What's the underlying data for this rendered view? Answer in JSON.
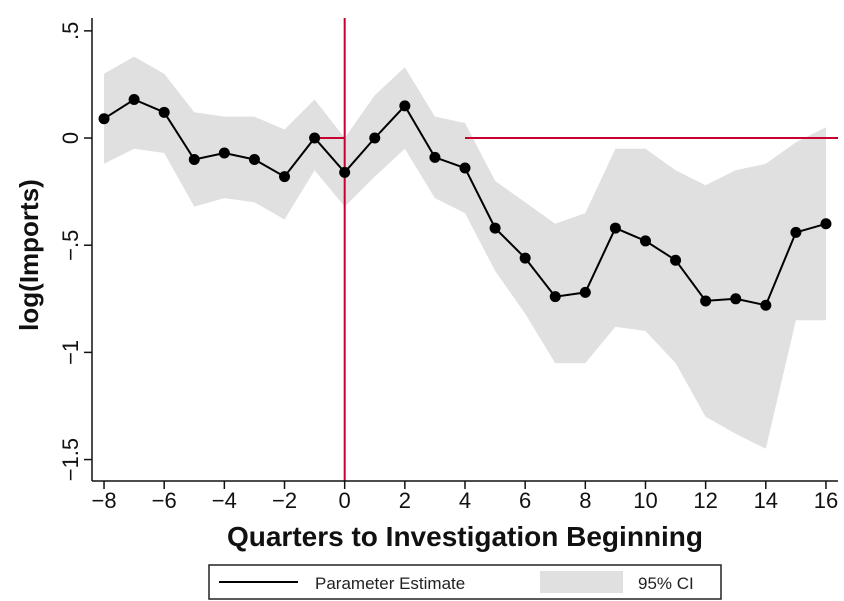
{
  "chart_data": {
    "type": "line",
    "title": "",
    "xlabel": "Quarters to Investigation Beginning",
    "ylabel": "log(Imports)",
    "xlim": [
      -8.4,
      16.4
    ],
    "ylim": [
      -1.6,
      0.56
    ],
    "x_ticks": [
      -8,
      -6,
      -4,
      -2,
      0,
      2,
      4,
      6,
      8,
      10,
      12,
      14,
      16
    ],
    "x_tick_labels": [
      "−8",
      "−6",
      "−4",
      "−2",
      "0",
      "2",
      "4",
      "6",
      "8",
      "10",
      "12",
      "14",
      "16"
    ],
    "y_ticks": [
      0.5,
      0,
      -0.5,
      -1,
      -1.5
    ],
    "y_tick_labels": [
      ".5",
      "0",
      "−.5",
      "−1",
      "−1.5"
    ],
    "grid": false,
    "x": [
      -8,
      -7,
      -6,
      -5,
      -4,
      -3,
      -2,
      -1,
      0,
      1,
      2,
      3,
      4,
      5,
      6,
      7,
      8,
      9,
      10,
      11,
      12,
      13,
      14,
      15,
      16
    ],
    "series": [
      {
        "name": "Parameter Estimate",
        "color": "#000000",
        "values": [
          0.09,
          0.18,
          0.12,
          -0.1,
          -0.07,
          -0.1,
          -0.18,
          0.0,
          -0.16,
          0.0,
          0.15,
          -0.09,
          -0.14,
          -0.42,
          -0.56,
          -0.74,
          -0.72,
          -0.42,
          -0.48,
          -0.57,
          -0.76,
          -0.75,
          -0.78,
          -0.44,
          -0.4
        ]
      }
    ],
    "ci": {
      "name": "95% CI",
      "color": "#e0e0e0",
      "lower": [
        -0.12,
        -0.05,
        -0.07,
        -0.32,
        -0.28,
        -0.3,
        -0.38,
        -0.15,
        -0.32,
        -0.18,
        -0.05,
        -0.28,
        -0.35,
        -0.62,
        -0.82,
        -1.05,
        -1.05,
        -0.88,
        -0.9,
        -1.05,
        -1.3,
        -1.38,
        -1.45,
        -0.85,
        -0.85
      ],
      "upper": [
        0.3,
        0.38,
        0.3,
        0.12,
        0.1,
        0.1,
        0.04,
        0.18,
        0.0,
        0.2,
        0.33,
        0.1,
        0.07,
        -0.2,
        -0.3,
        -0.4,
        -0.35,
        -0.05,
        -0.05,
        -0.15,
        -0.22,
        -0.15,
        -0.12,
        -0.02,
        0.05
      ]
    },
    "reference_lines": {
      "color": "#c8002e",
      "vertical_x": 0,
      "horizontal_y": 0,
      "pre_treatment_horizontal": {
        "x": [
          -1,
          0
        ],
        "y": 0
      }
    },
    "legend": {
      "position": "bottom",
      "entries": [
        "Parameter Estimate",
        "95% CI"
      ]
    }
  }
}
